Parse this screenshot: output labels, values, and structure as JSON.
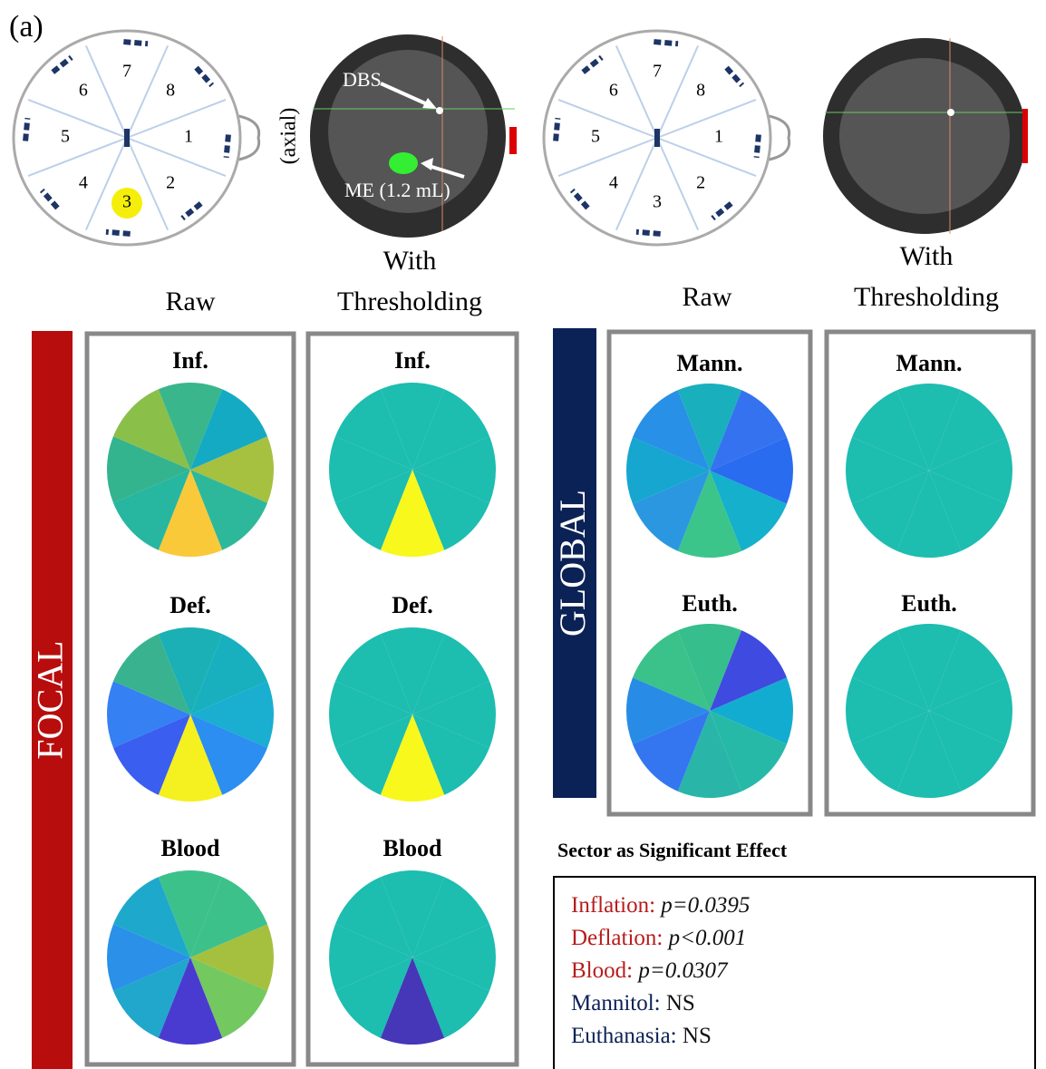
{
  "panel_label": "(a)",
  "head": {
    "sector_labels": [
      "1",
      "2",
      "3",
      "4",
      "5",
      "6",
      "7",
      "8"
    ],
    "highlight_sector": 3
  },
  "axial_label": "(axial)",
  "ct": {
    "dbs_label": "DBS",
    "me_label": "ME (1.2 mL)"
  },
  "headers": {
    "raw": "Raw",
    "thresholded": [
      "With",
      "Thresholding"
    ]
  },
  "groups": [
    {
      "label": "FOCAL",
      "color": "#b80d0d",
      "rows": [
        {
          "title": "Inf.",
          "raw_colors": [
            "#a6c040",
            "#2db89c",
            "#fac93a",
            "#27b6a0",
            "#34b38f",
            "#8abf4a",
            "#3ab68c",
            "#14aac3"
          ],
          "thresholded_colors": [
            "#1dbdb0",
            "#1dbdb0",
            "#f8f81c",
            "#1dbdb0",
            "#1dbdb0",
            "#1dbdb0",
            "#1dbdb0",
            "#1dbdb0"
          ]
        },
        {
          "title": "Def.",
          "raw_colors": [
            "#1aaed0",
            "#2b8ef0",
            "#f5f01f",
            "#3a5ef0",
            "#3580f2",
            "#39b38f",
            "#1ab0b5",
            "#18b0be"
          ],
          "thresholded_colors": [
            "#1dbdb0",
            "#1dbdb0",
            "#f8f81c",
            "#1dbdb0",
            "#1dbdb0",
            "#1dbdb0",
            "#1dbdb0",
            "#1dbdb0"
          ]
        },
        {
          "title": "Blood",
          "raw_colors": [
            "#a5c03e",
            "#74c860",
            "#4a3bd0",
            "#20a7cb",
            "#2a90e8",
            "#1ea9cc",
            "#3cc18a",
            "#3cc18a"
          ],
          "thresholded_colors": [
            "#1dbdb0",
            "#1dbdb0",
            "#4537b8",
            "#1dbdb0",
            "#1dbdb0",
            "#1dbdb0",
            "#1dbdb0",
            "#1dbdb0"
          ]
        }
      ]
    },
    {
      "label": "GLOBAL",
      "color": "#0b2256",
      "rows": [
        {
          "title": "Mann.",
          "raw_colors": [
            "#2a6cf0",
            "#14b0cc",
            "#3bc58a",
            "#2a97e0",
            "#16a6d0",
            "#2890e6",
            "#1aafbd",
            "#3472f0"
          ],
          "thresholded_colors": [
            "#1dbdb0",
            "#1dbdb0",
            "#1dbdb0",
            "#1dbdb0",
            "#1dbdb0",
            "#1dbdb0",
            "#1dbdb0",
            "#1dbdb0"
          ]
        },
        {
          "title": "Euth.",
          "raw_colors": [
            "#13acd1",
            "#27b9a8",
            "#29b6a8",
            "#3475f0",
            "#288ce6",
            "#3bc28a",
            "#36be8c",
            "#3f4ae0"
          ],
          "thresholded_colors": [
            "#1dbdb0",
            "#1dbdb0",
            "#1dbdb0",
            "#1dbdb0",
            "#1dbdb0",
            "#1dbdb0",
            "#1dbdb0",
            "#1dbdb0"
          ]
        }
      ]
    }
  ],
  "legend": {
    "title": "Sector as Significant Effect",
    "entries": [
      {
        "name": "Inflation:",
        "color": "#b71c1c",
        "result": "p=0.0395",
        "italic": true
      },
      {
        "name": "Deflation:",
        "color": "#b71c1c",
        "result": "p<0.001",
        "italic": true
      },
      {
        "name": "Blood:",
        "color": "#b71c1c",
        "result": "p=0.0307",
        "italic": true
      },
      {
        "name": "Mannitol:",
        "color": "#0b2256",
        "result": "NS",
        "italic": false
      },
      {
        "name": "Euthanasia:",
        "color": "#0b2256",
        "result": "NS",
        "italic": false
      }
    ]
  }
}
